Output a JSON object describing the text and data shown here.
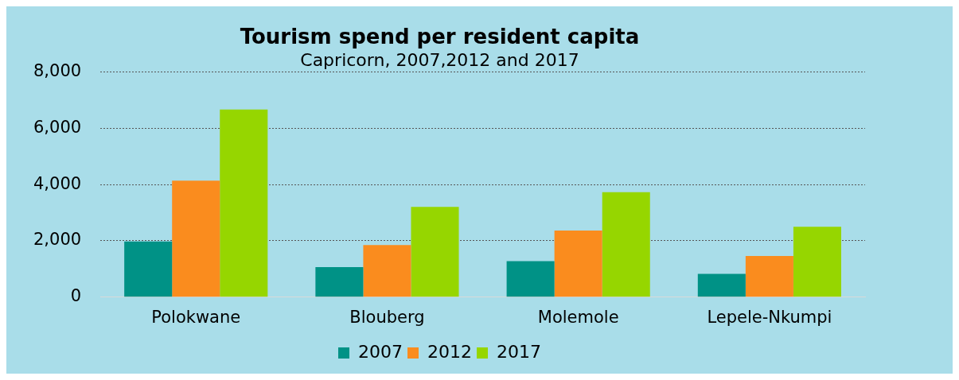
{
  "chart_data": {
    "type": "bar",
    "title": "Tourism spend per resident capita",
    "subtitle": "Capricorn, 2007,2012 and 2017",
    "categories": [
      "Polokwane",
      "Blouberg",
      "Molemole",
      "Lepele-Nkumpi"
    ],
    "series": [
      {
        "name": "2007",
        "color": "#009286",
        "values": [
          1980,
          1070,
          1280,
          830
        ]
      },
      {
        "name": "2012",
        "color": "#fa8c1e",
        "values": [
          4140,
          1850,
          2370,
          1460
        ]
      },
      {
        "name": "2017",
        "color": "#96d600",
        "values": [
          6670,
          3210,
          3730,
          2500
        ]
      }
    ],
    "ylim": [
      0,
      8000
    ],
    "yticks": [
      0,
      {
        "value": 2000,
        "label": "2,000"
      },
      {
        "value": 4000,
        "label": "4,000"
      },
      {
        "value": 6000,
        "label": "6,000"
      },
      {
        "value": 8000,
        "label": "8,000"
      }
    ],
    "grid": "y",
    "legend": "bottom"
  }
}
